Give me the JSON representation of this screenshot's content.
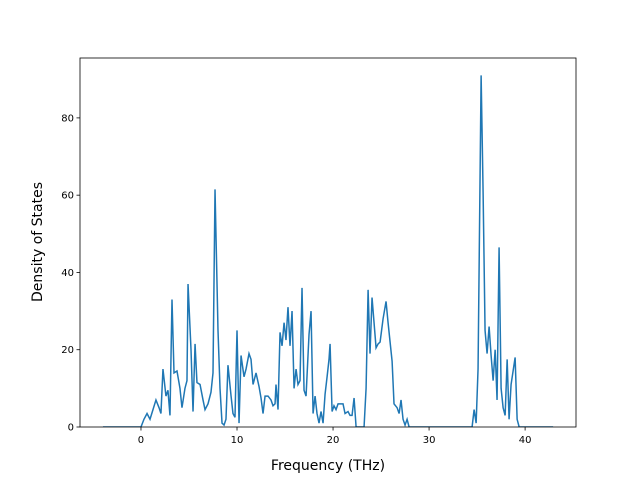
{
  "chart_data": {
    "type": "line",
    "x_label": "Frequency (THz)",
    "y_label": "Density of States",
    "xlim": [
      -6.35,
      45.3
    ],
    "ylim": [
      0,
      95.5
    ],
    "xticks": [
      0,
      10,
      20,
      30,
      40
    ],
    "yticks": [
      0,
      20,
      40,
      60,
      80
    ],
    "grid": false,
    "x": [
      -3.96,
      0,
      0.31,
      0.63,
      0.94,
      1.25,
      1.56,
      1.88,
      2.08,
      2.29,
      2.6,
      2.81,
      3.02,
      3.23,
      3.44,
      3.75,
      4.06,
      4.27,
      4.58,
      4.79,
      4.9,
      5.21,
      5.42,
      5.63,
      5.83,
      6.15,
      6.46,
      6.67,
      6.98,
      7.29,
      7.5,
      7.71,
      8.02,
      8.23,
      8.44,
      8.65,
      8.85,
      9.06,
      9.38,
      9.58,
      9.79,
      10.0,
      10.21,
      10.42,
      10.73,
      10.94,
      11.25,
      11.46,
      11.67,
      11.98,
      12.29,
      12.5,
      12.71,
      12.92,
      13.23,
      13.54,
      13.75,
      13.96,
      14.06,
      14.27,
      14.48,
      14.69,
      14.9,
      15.1,
      15.31,
      15.52,
      15.73,
      15.94,
      16.15,
      16.35,
      16.56,
      16.77,
      16.98,
      17.19,
      17.5,
      17.71,
      17.92,
      18.13,
      18.33,
      18.54,
      18.75,
      18.96,
      19.17,
      19.38,
      19.58,
      19.69,
      19.9,
      20.1,
      20.31,
      20.52,
      20.83,
      21.04,
      21.25,
      21.56,
      21.77,
      21.98,
      22.19,
      22.4,
      23.23,
      23.44,
      23.65,
      23.85,
      24.06,
      24.27,
      24.48,
      24.69,
      24.9,
      25.21,
      25.52,
      25.73,
      25.94,
      26.15,
      26.35,
      26.67,
      26.88,
      27.08,
      27.29,
      27.5,
      27.71,
      27.92,
      28.13,
      34.48,
      34.69,
      34.9,
      35.1,
      35.42,
      35.63,
      35.83,
      36.04,
      36.25,
      36.46,
      36.67,
      36.88,
      37.08,
      37.29,
      37.5,
      37.71,
      37.92,
      38.13,
      38.33,
      38.54,
      38.75,
      38.96,
      39.17,
      39.38,
      42.92
    ],
    "series": [
      {
        "color": "#1f77b4",
        "values": [
          0,
          0,
          2,
          3.5,
          2,
          4.5,
          7,
          5,
          3.5,
          15,
          8,
          9.5,
          3,
          33,
          14,
          14.5,
          10,
          5,
          10,
          12,
          37,
          20,
          4,
          21.5,
          11.5,
          11,
          7,
          4.5,
          6,
          9,
          14,
          61.5,
          25,
          10,
          1,
          0.5,
          2,
          16,
          8,
          3.5,
          2.5,
          25,
          1,
          18.5,
          13,
          15,
          19,
          17.5,
          11,
          14,
          10.5,
          7.5,
          3.5,
          8,
          8,
          7,
          5.5,
          6,
          11,
          4.5,
          24.5,
          21,
          27,
          22.5,
          31,
          21,
          30,
          10,
          15,
          11,
          12,
          36,
          9.5,
          8,
          24,
          30,
          3.5,
          8,
          3.5,
          1,
          4,
          1,
          8.5,
          13,
          17.5,
          21.5,
          4,
          5.5,
          4.5,
          6,
          6,
          6,
          3.5,
          4,
          3,
          3,
          7.5,
          0,
          0,
          10,
          35.5,
          19,
          33.5,
          27,
          20.5,
          21.5,
          22,
          28,
          32.5,
          27,
          22,
          17,
          6,
          5,
          3.5,
          7,
          2,
          0.5,
          2,
          0,
          0,
          0,
          4.5,
          1,
          15,
          91,
          60,
          25,
          19,
          26,
          18.5,
          12,
          20,
          7,
          46.5,
          10,
          5,
          3,
          17.5,
          2,
          11,
          14.5,
          18,
          2,
          0,
          0
        ]
      }
    ]
  }
}
